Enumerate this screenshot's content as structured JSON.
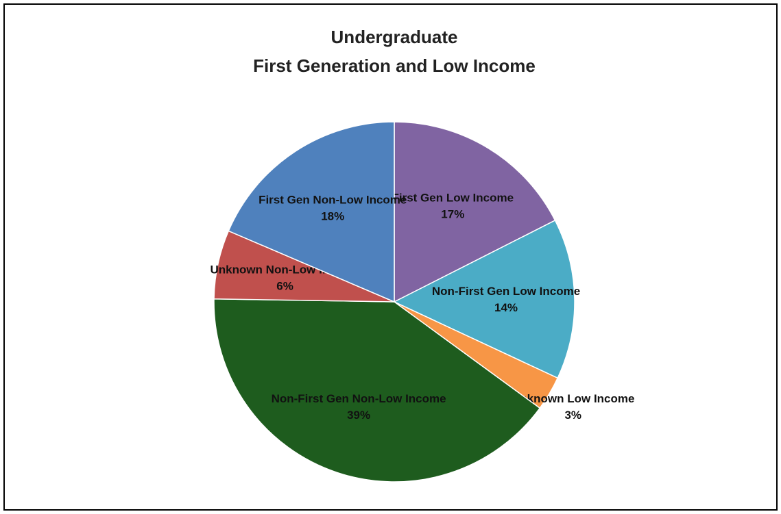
{
  "chart_data": {
    "type": "pie",
    "title": [
      "Undergraduate",
      "First Generation and Low Income"
    ],
    "categories": [
      "First Gen Low Income",
      "Non-First Gen Low Income",
      "Unknown Low Income",
      "Non-First Gen Non-Low Income",
      "Unknown Non-Low Income",
      "First Gen Non-Low Income"
    ],
    "values": [
      17,
      14,
      3,
      39,
      6,
      18
    ],
    "value_labels": [
      "17%",
      "14%",
      "3%",
      "39%",
      "6%",
      "18%"
    ],
    "colors": [
      "#8064a2",
      "#4bacc6",
      "#f79646",
      "#1e5c1e",
      "#c0504d",
      "#4f81bd"
    ]
  }
}
